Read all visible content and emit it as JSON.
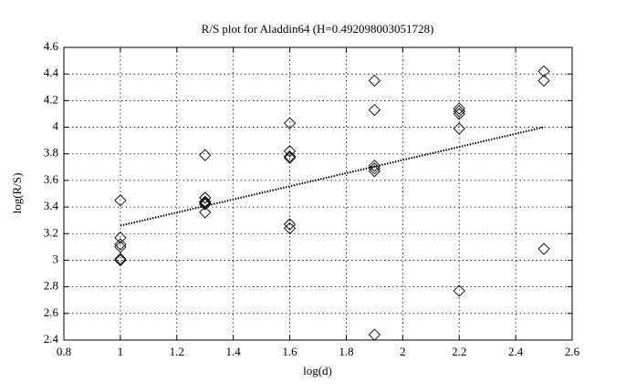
{
  "chart_data": {
    "type": "scatter",
    "title": "R/S plot for Aladdin64 (H=0.492098003051728)",
    "xlabel": "log(d)",
    "ylabel": "log(R/S)",
    "x": [
      1,
      1,
      1,
      1,
      1,
      1,
      1.3,
      1.3,
      1.3,
      1.3,
      1.3,
      1.3,
      1.6,
      1.6,
      1.6,
      1.6,
      1.6,
      1.6,
      1.9,
      1.9,
      1.9,
      1.9,
      1.9,
      1.9,
      2.2,
      2.2,
      2.2,
      2.2,
      2.2,
      2.5,
      2.5,
      2.5
    ],
    "y": [
      3.45,
      3.17,
      3.12,
      3.1,
      3.01,
      3.0,
      3.79,
      3.47,
      3.44,
      3.43,
      3.42,
      3.36,
      4.03,
      3.82,
      3.78,
      3.77,
      3.27,
      3.24,
      4.35,
      4.13,
      3.71,
      3.69,
      3.67,
      2.44,
      4.14,
      4.12,
      4.1,
      3.99,
      2.77,
      4.42,
      4.35,
      3.085
    ],
    "fit": {
      "x": [
        1,
        2.5
      ],
      "y": [
        3.26,
        4.0
      ]
    },
    "color": "#000000",
    "xlim": [
      0.8,
      2.6
    ],
    "ylim": [
      2.4,
      4.6
    ],
    "xticks": [
      0.8,
      1,
      1.2,
      1.4,
      1.6,
      1.8,
      2,
      2.2,
      2.4,
      2.6
    ],
    "yticks": [
      2.4,
      2.6,
      2.8,
      3,
      3.2,
      3.4,
      3.6,
      3.8,
      4,
      4.2,
      4.4,
      4.6
    ],
    "grid": true
  }
}
